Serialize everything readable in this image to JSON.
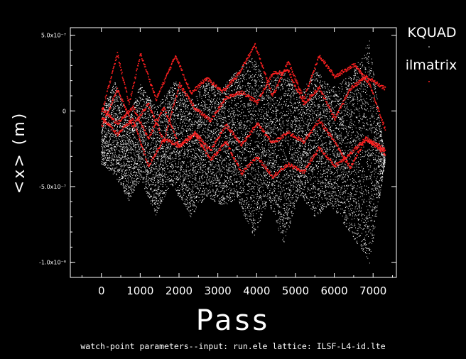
{
  "chart_data": {
    "type": "scatter",
    "xlabel": "Pass",
    "ylabel": "<x>  (m)",
    "footer": "watch-point parameters--input: run.ele  lattice: ILSF-L4-id.lte",
    "xlim": [
      -800,
      7600
    ],
    "ylim": [
      -1.1e-06,
      5.5e-07
    ],
    "x_ticks": [
      0,
      1000,
      2000,
      3000,
      4000,
      5000,
      6000,
      7000
    ],
    "x_tick_labels": [
      "0",
      "1000",
      "2000",
      "3000",
      "4000",
      "5000",
      "6000",
      "7000"
    ],
    "y_ticks": [
      5e-07,
      0,
      -5e-07,
      -1e-06
    ],
    "y_tick_labels": [
      "5.0x10⁻⁷",
      "0",
      "-5.0x10⁻⁷",
      "-1.0x10⁻⁶"
    ],
    "series": [
      {
        "name": "KQUAD",
        "color": "#ffffff",
        "x_range": [
          0,
          7300
        ],
        "envelope_upper": [
          [
            0,
            0
          ],
          [
            350,
            2e-07
          ],
          [
            700,
            -5e-08
          ],
          [
            1000,
            1.8e-07
          ],
          [
            1400,
            3e-08
          ],
          [
            1900,
            2e-07
          ],
          [
            2300,
            8e-08
          ],
          [
            2700,
            2.2e-07
          ],
          [
            3100,
            1.5e-07
          ],
          [
            3500,
            2.8e-07
          ],
          [
            3900,
            3.6e-07
          ],
          [
            4300,
            1.8e-07
          ],
          [
            4700,
            3e-07
          ],
          [
            5100,
            1e-07
          ],
          [
            5500,
            2.8e-07
          ],
          [
            5900,
            1.6e-07
          ],
          [
            6400,
            2.4e-07
          ],
          [
            6900,
            4.7e-07
          ],
          [
            7300,
            -3e-07
          ]
        ],
        "envelope_lower": [
          [
            0,
            -3.5e-07
          ],
          [
            350,
            -4.3e-07
          ],
          [
            700,
            -5.9e-07
          ],
          [
            1000,
            -4.5e-07
          ],
          [
            1400,
            -6.9e-07
          ],
          [
            1800,
            -4.8e-07
          ],
          [
            2300,
            -7e-07
          ],
          [
            2700,
            -5.6e-07
          ],
          [
            3100,
            -6.3e-07
          ],
          [
            3500,
            -5.8e-07
          ],
          [
            3900,
            -8.4e-07
          ],
          [
            4300,
            -6e-07
          ],
          [
            4700,
            -8.8e-07
          ],
          [
            5100,
            -5.5e-07
          ],
          [
            5500,
            -7e-07
          ],
          [
            5900,
            -6.2e-07
          ],
          [
            6400,
            -8e-07
          ],
          [
            6900,
            -1.01e-06
          ],
          [
            7300,
            -3.4e-07
          ]
        ]
      },
      {
        "name": "ilmatrix",
        "color": "#ff2020",
        "curves": [
          [
            [
              0,
              0
            ],
            [
              400,
              3.8e-07
            ],
            [
              700,
              5e-08
            ],
            [
              1000,
              3.8e-07
            ],
            [
              1400,
              8e-08
            ],
            [
              1900,
              3.7e-07
            ],
            [
              2300,
              1.2e-07
            ],
            [
              2700,
              2.2e-07
            ],
            [
              3100,
              1.3e-07
            ],
            [
              3500,
              2.4e-07
            ],
            [
              3950,
              4.4e-07
            ],
            [
              4400,
              1e-07
            ],
            [
              4800,
              3.3e-07
            ],
            [
              5200,
              8e-08
            ],
            [
              5600,
              3.7e-07
            ],
            [
              6000,
              2.3e-07
            ],
            [
              6500,
              3.1e-07
            ],
            [
              6900,
              1.8e-07
            ],
            [
              7300,
              -1.2e-07
            ]
          ],
          [
            [
              0,
              -1e-07
            ],
            [
              400,
              1.5e-07
            ],
            [
              800,
              -1e-07
            ],
            [
              1200,
              5e-08
            ],
            [
              1600,
              -2e-07
            ],
            [
              2000,
              1.8e-07
            ],
            [
              2400,
              2e-08
            ],
            [
              2800,
              -6e-08
            ],
            [
              3200,
              9e-08
            ],
            [
              3600,
              1.3e-07
            ],
            [
              4000,
              6e-08
            ],
            [
              4400,
              2.5e-07
            ],
            [
              4800,
              2.7e-07
            ],
            [
              5200,
              5e-08
            ],
            [
              5600,
              1.6e-07
            ],
            [
              6000,
              -5e-08
            ],
            [
              6400,
              1.5e-07
            ],
            [
              6800,
              2.3e-07
            ],
            [
              7300,
              1.5e-07
            ]
          ],
          [
            [
              0,
              2e-08
            ],
            [
              400,
              -8e-08
            ],
            [
              800,
              3e-08
            ],
            [
              1200,
              -1.8e-07
            ],
            [
              1600,
              3e-08
            ],
            [
              2000,
              -2.3e-07
            ],
            [
              2400,
              -1.4e-07
            ],
            [
              2800,
              -2.6e-07
            ],
            [
              3200,
              -9e-08
            ],
            [
              3600,
              -2.2e-07
            ],
            [
              4000,
              -8e-08
            ],
            [
              4400,
              -2.1e-07
            ],
            [
              4800,
              -1.4e-07
            ],
            [
              5200,
              -2e-07
            ],
            [
              5600,
              -6e-08
            ],
            [
              6000,
              -2e-07
            ],
            [
              6400,
              -3.7e-07
            ],
            [
              6800,
              -1.8e-07
            ],
            [
              7300,
              -2.8e-07
            ]
          ],
          [
            [
              0,
              -4e-08
            ],
            [
              400,
              -1.5e-07
            ],
            [
              800,
              -5e-08
            ],
            [
              1200,
              -3.6e-07
            ],
            [
              1600,
              -1.8e-07
            ],
            [
              2000,
              -2.3e-07
            ],
            [
              2400,
              -1.5e-07
            ],
            [
              2800,
              -3.2e-07
            ],
            [
              3200,
              -2e-07
            ],
            [
              3600,
              -4.1e-07
            ],
            [
              4000,
              -3e-07
            ],
            [
              4400,
              -4.3e-07
            ],
            [
              4800,
              -3.5e-07
            ],
            [
              5200,
              -4e-07
            ],
            [
              5600,
              -2.4e-07
            ],
            [
              6000,
              -3.6e-07
            ],
            [
              6400,
              -2.8e-07
            ],
            [
              6800,
              -1.8e-07
            ],
            [
              7300,
              -2.5e-07
            ]
          ]
        ]
      }
    ],
    "legend": [
      "KQUAD",
      "ilmatrix"
    ],
    "legend_position": "right",
    "grid": false
  }
}
